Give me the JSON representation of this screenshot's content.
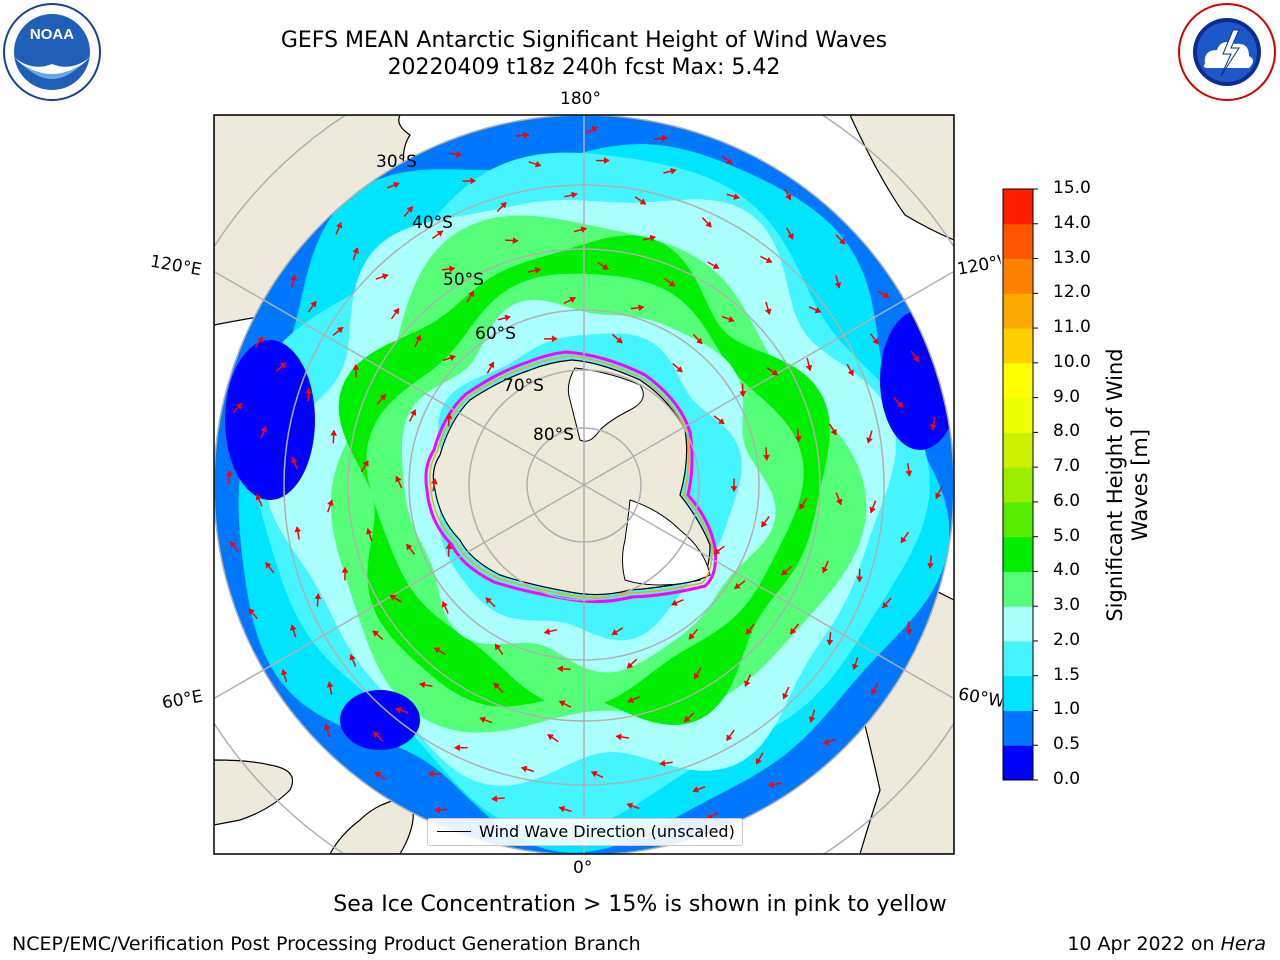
{
  "header": {
    "title_line1": "GEFS MEAN Antarctic Significant Height of Wind Waves",
    "title_line2": "20220409 t18z 240h fcst   Max: 5.42"
  },
  "map": {
    "projection": "south-polar-stereographic",
    "longitude_labels": {
      "top": "180°",
      "bottom": "0°",
      "left_upper": "120°E",
      "left_lower": "60°E",
      "right_upper": "120°W",
      "right_lower": "60°W"
    },
    "latitude_labels": [
      "30°S",
      "40°S",
      "50°S",
      "60°S",
      "70°S",
      "80°S"
    ],
    "legend_label": "Wind Wave Direction (unscaled)",
    "arrow_color": "#ff0000",
    "land_color": "#eeeadb",
    "ice_outline_colors": [
      "#ff00ff",
      "#ffa500",
      "#ffff00"
    ]
  },
  "colorbar": {
    "title": "Significant Height of Wind Waves [m]",
    "ticks": [
      "0.0",
      "0.5",
      "1.0",
      "1.5",
      "2.0",
      "3.0",
      "4.0",
      "5.0",
      "6.0",
      "7.0",
      "8.0",
      "9.0",
      "10.0",
      "11.0",
      "12.0",
      "13.0",
      "14.0",
      "15.0"
    ],
    "colors": [
      "#0000ff",
      "#0077ff",
      "#00e5ff",
      "#44f5ff",
      "#aaffff",
      "#55ff77",
      "#00ee00",
      "#55ee00",
      "#99ee00",
      "#ccf200",
      "#eeff00",
      "#ffff00",
      "#ffd000",
      "#ffa800",
      "#ff8000",
      "#ff5500",
      "#ff1e00"
    ]
  },
  "footer": {
    "ice_note": "Sea Ice Concentration > 15% is shown in pink to yellow",
    "credit": "NCEP/EMC/Verification Post Processing Product Generation Branch",
    "date_prefix": "10 Apr 2022 on ",
    "date_system": "Hera"
  },
  "logos": {
    "left": {
      "text": "NOAA",
      "ring_text": "NATIONAL OCEANIC AND ATMOSPHERIC ADMINISTRATION · U.S. DEPARTMENT OF COMMERCE"
    },
    "right": {
      "ring_text": "NATIONAL WEATHER SERVICE"
    }
  }
}
